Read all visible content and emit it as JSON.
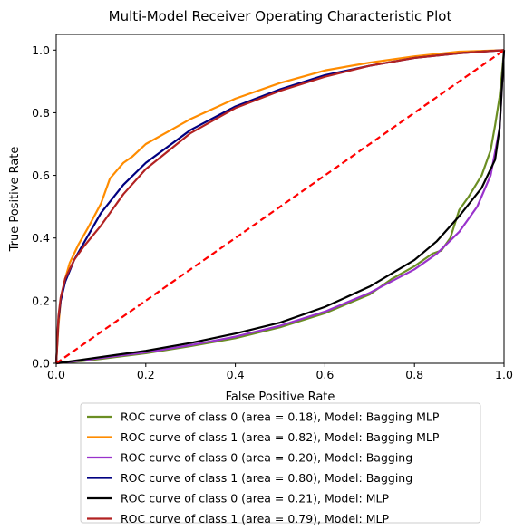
{
  "chart_data": {
    "type": "line",
    "title": "Multi-Model Receiver Operating Characteristic Plot",
    "xlabel": "False Positive Rate",
    "ylabel": "True Positive Rate",
    "xlim": [
      0.0,
      1.0
    ],
    "ylim": [
      0.0,
      1.05
    ],
    "xticks": [
      "0.0",
      "0.2",
      "0.4",
      "0.6",
      "0.8",
      "1.0"
    ],
    "yticks": [
      "0.0",
      "0.2",
      "0.4",
      "0.6",
      "0.8",
      "1.0"
    ],
    "grid": false,
    "legend_position": "below plot",
    "series": [
      {
        "name": "ROC curve of class 0 (area = 0.18), Model: Bagging MLP",
        "color": "#6b8e23",
        "x": [
          0,
          0.05,
          0.1,
          0.2,
          0.3,
          0.4,
          0.5,
          0.6,
          0.7,
          0.75,
          0.8,
          0.84,
          0.86,
          0.88,
          0.9,
          0.92,
          0.95,
          0.97,
          0.98,
          0.99,
          0.995,
          1.0
        ],
        "y": [
          0,
          0.006,
          0.014,
          0.032,
          0.055,
          0.08,
          0.115,
          0.16,
          0.22,
          0.27,
          0.31,
          0.35,
          0.36,
          0.4,
          0.49,
          0.53,
          0.6,
          0.68,
          0.76,
          0.85,
          0.92,
          1.0
        ]
      },
      {
        "name": "ROC curve of class 1 (area = 0.82), Model: Bagging MLP",
        "color": "#ff8c00",
        "x": [
          0,
          0.005,
          0.01,
          0.02,
          0.03,
          0.05,
          0.07,
          0.1,
          0.12,
          0.15,
          0.17,
          0.2,
          0.25,
          0.3,
          0.4,
          0.5,
          0.6,
          0.7,
          0.8,
          0.9,
          1.0
        ],
        "y": [
          0,
          0.12,
          0.2,
          0.27,
          0.32,
          0.38,
          0.43,
          0.51,
          0.59,
          0.64,
          0.66,
          0.7,
          0.74,
          0.78,
          0.845,
          0.895,
          0.935,
          0.96,
          0.98,
          0.995,
          1.0
        ]
      },
      {
        "name": "ROC curve of class 0 (area = 0.20), Model: Bagging",
        "color": "#9932cc",
        "x": [
          0,
          0.05,
          0.1,
          0.2,
          0.3,
          0.4,
          0.5,
          0.6,
          0.7,
          0.8,
          0.85,
          0.9,
          0.94,
          0.97,
          0.99,
          1.0
        ],
        "y": [
          0,
          0.008,
          0.017,
          0.035,
          0.058,
          0.085,
          0.12,
          0.165,
          0.225,
          0.3,
          0.35,
          0.42,
          0.5,
          0.6,
          0.75,
          1.0
        ]
      },
      {
        "name": "ROC curve of class 1 (area = 0.80), Model: Bagging",
        "color": "#000080",
        "x": [
          0,
          0.005,
          0.01,
          0.02,
          0.04,
          0.06,
          0.08,
          0.1,
          0.15,
          0.2,
          0.3,
          0.4,
          0.5,
          0.6,
          0.7,
          0.8,
          0.9,
          1.0
        ],
        "y": [
          0,
          0.14,
          0.2,
          0.26,
          0.33,
          0.38,
          0.43,
          0.48,
          0.57,
          0.64,
          0.745,
          0.82,
          0.875,
          0.92,
          0.95,
          0.975,
          0.99,
          1.0
        ]
      },
      {
        "name": "ROC curve of class 0 (area = 0.21), Model: MLP",
        "color": "#000000",
        "x": [
          0,
          0.05,
          0.1,
          0.2,
          0.3,
          0.4,
          0.5,
          0.6,
          0.7,
          0.8,
          0.85,
          0.9,
          0.95,
          0.98,
          0.99,
          1.0
        ],
        "y": [
          0,
          0.01,
          0.02,
          0.04,
          0.065,
          0.095,
          0.13,
          0.18,
          0.245,
          0.33,
          0.39,
          0.47,
          0.56,
          0.65,
          0.75,
          1.0
        ]
      },
      {
        "name": "ROC curve of class 1 (area = 0.79), Model: MLP",
        "color": "#b22222",
        "x": [
          0,
          0.005,
          0.01,
          0.02,
          0.04,
          0.06,
          0.1,
          0.15,
          0.2,
          0.3,
          0.4,
          0.5,
          0.6,
          0.7,
          0.8,
          0.9,
          1.0
        ],
        "y": [
          0,
          0.15,
          0.21,
          0.27,
          0.33,
          0.37,
          0.44,
          0.54,
          0.62,
          0.735,
          0.815,
          0.87,
          0.915,
          0.95,
          0.975,
          0.99,
          1.0
        ]
      },
      {
        "name": "",
        "color": "#ff0000",
        "dashed": true,
        "x": [
          0,
          1
        ],
        "y": [
          0,
          1
        ]
      }
    ]
  }
}
